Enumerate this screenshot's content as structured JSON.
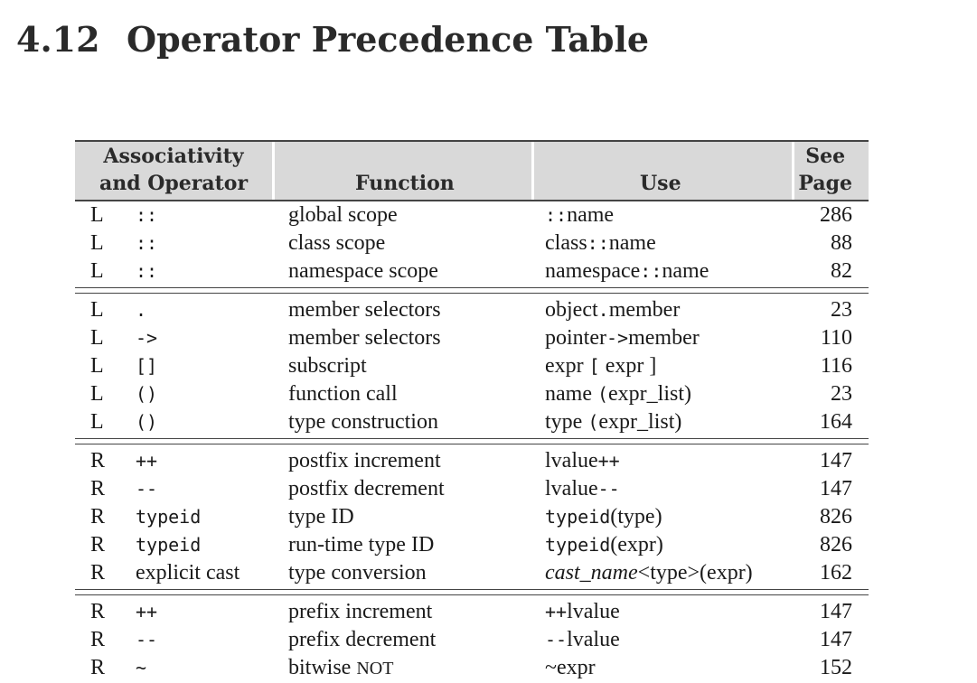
{
  "section": {
    "number": "4.12",
    "title": "Operator Precedence Table"
  },
  "header": {
    "assoc_line1": "Associativity",
    "assoc_line2": "and Operator",
    "function": "Function",
    "use": "Use",
    "page_line1": "See",
    "page_line2": "Page"
  },
  "groups": [
    [
      {
        "assoc": "L",
        "op": "::",
        "func": "global scope",
        "use_pre": "::",
        "use_main": "name",
        "use_post": "",
        "page": "286"
      },
      {
        "assoc": "L",
        "op": "::",
        "func": "class scope",
        "use_pre": "class",
        "use_main": "::",
        "use_post": "name",
        "page": "88"
      },
      {
        "assoc": "L",
        "op": "::",
        "func": "namespace scope",
        "use_pre": "namespace",
        "use_main": "::",
        "use_post": "name",
        "page": "82"
      }
    ],
    [
      {
        "assoc": "L",
        "op": ".",
        "func": "member selectors",
        "use_pre": "object",
        "use_main": ".",
        "use_post": "member",
        "page": "23"
      },
      {
        "assoc": "L",
        "op": "->",
        "func": "member selectors",
        "use_pre": "pointer",
        "use_main": "->",
        "use_post": "member",
        "page": "110"
      },
      {
        "assoc": "L",
        "op": "[]",
        "func": "subscript",
        "use_pre": "expr",
        "use_main": "[",
        "use_post": "expr ]",
        "page": "116"
      },
      {
        "assoc": "L",
        "op": "()",
        "func": "function call",
        "use_pre": "name",
        "use_main": "(",
        "use_post": "expr_list)",
        "page": "23"
      },
      {
        "assoc": "L",
        "op": "()",
        "func": "type construction",
        "use_pre": "type",
        "use_main": "(",
        "use_post": "expr_list)",
        "page": "164"
      }
    ],
    [
      {
        "assoc": "R",
        "op": "++",
        "func": "postfix increment",
        "use_pre": "lvalue",
        "use_main": "++",
        "use_post": "",
        "page": "147"
      },
      {
        "assoc": "R",
        "op": "--",
        "func": "postfix decrement",
        "use_pre": "lvalue",
        "use_main": "--",
        "use_post": "",
        "page": "147"
      },
      {
        "assoc": "R",
        "op": "typeid",
        "func": "type ID",
        "use_pre": "",
        "use_main": "typeid",
        "use_post": "(type)",
        "page": "826"
      },
      {
        "assoc": "R",
        "op": "typeid",
        "func": "run-time type ID",
        "use_pre": "",
        "use_main": "typeid",
        "use_post": "(expr)",
        "page": "826"
      },
      {
        "assoc": "R",
        "op": "explicit cast",
        "func": "type conversion",
        "use_pre": "cast_name",
        "use_main": "<type>",
        "use_post": "(expr)",
        "page": "162"
      }
    ],
    [
      {
        "assoc": "R",
        "op": "++",
        "func": "prefix increment",
        "use_pre": "++",
        "use_main": "lvalue",
        "use_post": "",
        "page": "147"
      },
      {
        "assoc": "R",
        "op": "--",
        "func": "prefix decrement",
        "use_pre": "--",
        "use_main": "lvalue",
        "use_post": "",
        "page": "147"
      },
      {
        "assoc": "R",
        "op": "~",
        "func_pre": "bitwise ",
        "func_sc": "NOT",
        "use_pre": "~",
        "use_main": "expr",
        "use_post": "",
        "page": "152"
      }
    ]
  ]
}
